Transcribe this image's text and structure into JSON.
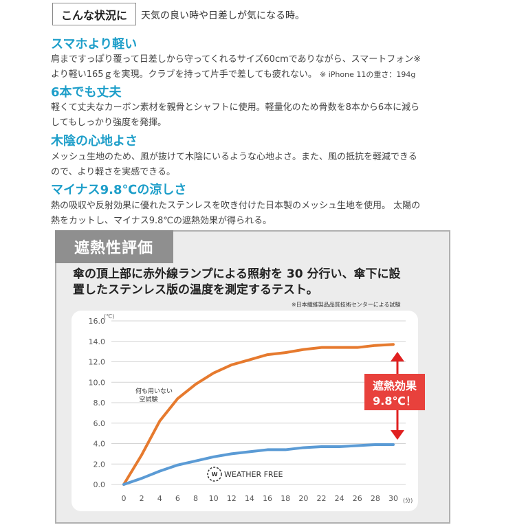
{
  "situation": {
    "label": "こんな状況に",
    "text": "天気の良い時や日差しが気になる時。"
  },
  "features": [
    {
      "title": "スマホより軽い",
      "lines": [
        "肩まですっぽり覆って日差しから守ってくれるサイズ60cmでありながら、スマートフォン※",
        "より軽い165ｇを実現。クラブを持って片手で差しても疲れない。"
      ],
      "note": "※ iPhone 11の重さ：194g"
    },
    {
      "title": "6本でも丈夫",
      "lines": [
        "軽くて丈夫なカーボン素材を親骨とシャフトに使用。軽量化のため骨数を8本から6本に減ら",
        "してもしっかり強度を発揮。"
      ]
    },
    {
      "title": "木陰の心地よさ",
      "lines": [
        "メッシュ生地のため、風が抜けて木陰にいるような心地よさ。また、風の抵抗を軽減できる",
        "ので、より軽さを実感できる。"
      ]
    },
    {
      "title": "マイナス9.8℃の涼しさ",
      "lines": [
        "熱の吸収や反射効果に優れたステンレスを吹き付けた日本製のメッシュ生地を使用。 太陽の",
        "熱をカットし、マイナス9.8℃の遮熱効果が得られる。"
      ]
    }
  ],
  "panel": {
    "tab": "遮熱性評価",
    "desc_lines": [
      "傘の頂上部に赤外線ランプによる照射を 30 分行い、傘下に設",
      "置したステンレス版の温度を測定するテスト。"
    ],
    "source": "※日本繊維製品品質技術センターによる試験"
  },
  "colors": {
    "accent": "#1d9ec9",
    "orange": "#e67a2e",
    "blue": "#5b9bd5",
    "red": "#e02020",
    "badge": "#e8413c"
  },
  "chart_data": {
    "type": "line",
    "x": [
      0,
      2,
      4,
      6,
      8,
      10,
      12,
      14,
      16,
      18,
      20,
      22,
      24,
      26,
      28,
      30
    ],
    "xticks": [
      "0",
      "2",
      "4",
      "6",
      "8",
      "10",
      "12",
      "14",
      "16",
      "18",
      "20",
      "22",
      "24",
      "26",
      "28",
      "30"
    ],
    "yticks": [
      "0.0",
      "2.0",
      "4.0",
      "6.0",
      "8.0",
      "10.0",
      "12.0",
      "14.0",
      "16.0"
    ],
    "xunit": "(分)",
    "yunit": "(℃)",
    "xlim": [
      0,
      30
    ],
    "ylim": [
      0,
      16
    ],
    "series": [
      {
        "values": [
          0.0,
          2.9,
          6.2,
          8.4,
          9.8,
          10.9,
          11.7,
          12.2,
          12.7,
          12.9,
          13.2,
          13.4,
          13.4,
          13.4,
          13.6,
          13.7
        ]
      },
      {
        "values": [
          0.0,
          0.6,
          1.3,
          1.9,
          2.3,
          2.7,
          3.0,
          3.2,
          3.4,
          3.4,
          3.6,
          3.7,
          3.7,
          3.8,
          3.9,
          3.9
        ]
      }
    ],
    "annotations": {
      "control_label": [
        "何も用いない",
        "空試験"
      ],
      "brand": "WEATHER FREE",
      "badge": [
        "遮熱効果",
        "9.8℃！"
      ]
    }
  }
}
